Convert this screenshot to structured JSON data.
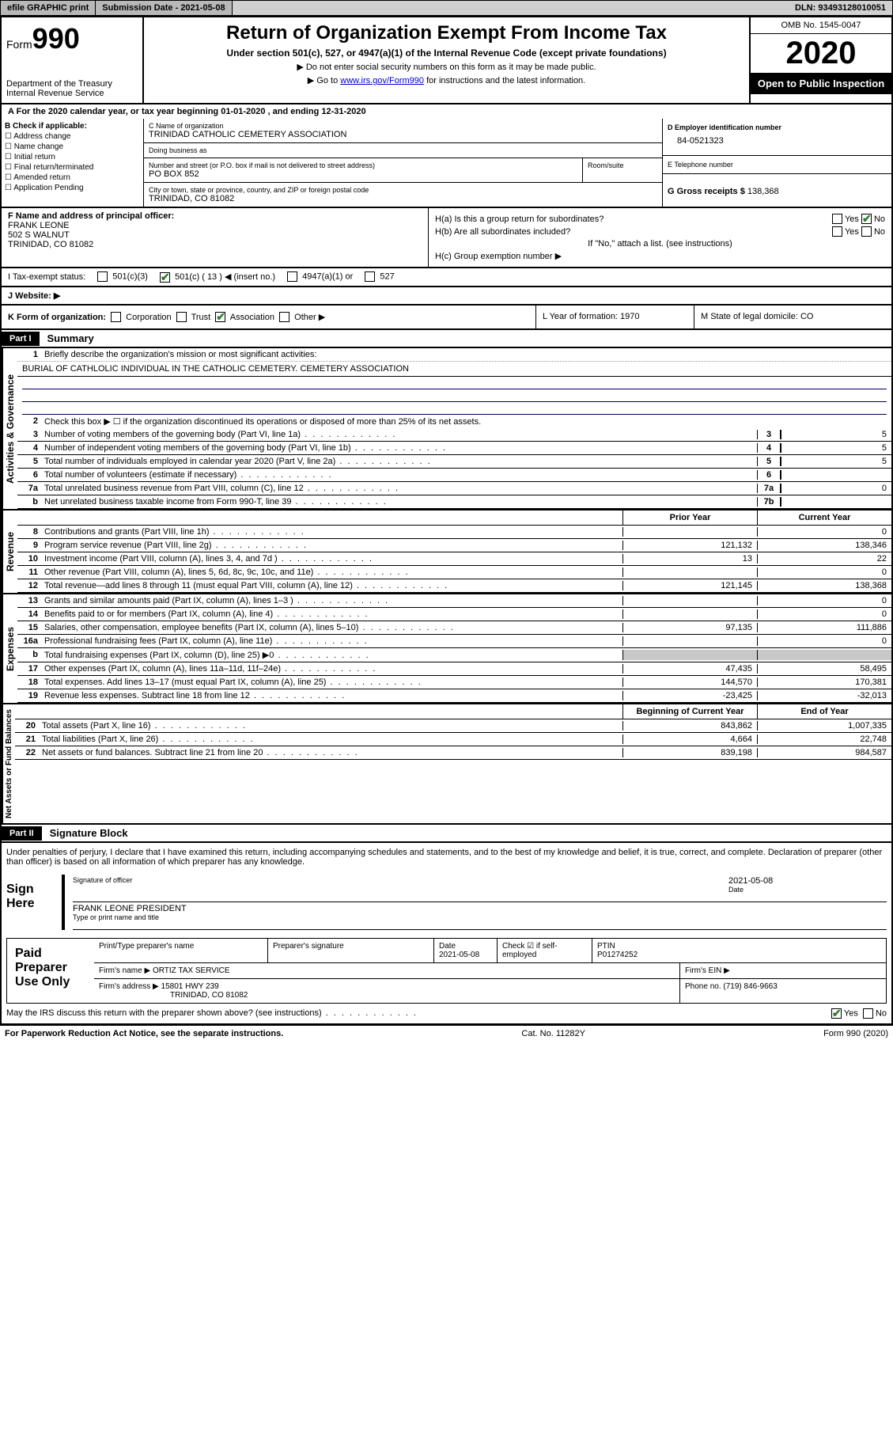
{
  "topbar": {
    "efile": "efile GRAPHIC print",
    "submission": "Submission Date - 2021-05-08",
    "dln": "DLN: 93493128010051"
  },
  "header": {
    "form_label": "Form",
    "form_num": "990",
    "dept": "Department of the Treasury\nInternal Revenue Service",
    "title": "Return of Organization Exempt From Income Tax",
    "subtitle": "Under section 501(c), 527, or 4947(a)(1) of the Internal Revenue Code (except private foundations)",
    "note1": "▶ Do not enter social security numbers on this form as it may be made public.",
    "note2_pre": "▶ Go to ",
    "note2_link": "www.irs.gov/Form990",
    "note2_post": " for instructions and the latest information.",
    "omb": "OMB No. 1545-0047",
    "year": "2020",
    "open": "Open to Public Inspection"
  },
  "period": "For the 2020 calendar year, or tax year beginning 01-01-2020    , and ending 12-31-2020",
  "box_b": {
    "label": "B Check if applicable:",
    "opts": [
      "Address change",
      "Name change",
      "Initial return",
      "Final return/terminated",
      "Amended return",
      "Application Pending"
    ]
  },
  "box_c": {
    "name_label": "C Name of organization",
    "name": "TRINIDAD CATHOLIC CEMETERY ASSOCIATION",
    "dba_label": "Doing business as",
    "dba": "",
    "street_label": "Number and street (or P.O. box if mail is not delivered to street address)",
    "room_label": "Room/suite",
    "street": "PO BOX 852",
    "city_label": "City or town, state or province, country, and ZIP or foreign postal code",
    "city": "TRINIDAD, CO  81082"
  },
  "box_d": {
    "label": "D Employer identification number",
    "val": "84-0521323"
  },
  "box_e": {
    "label": "E Telephone number",
    "val": ""
  },
  "box_g": {
    "label": "G Gross receipts $",
    "val": "138,368"
  },
  "box_f": {
    "label": "F  Name and address of principal officer:",
    "name": "FRANK LEONE",
    "addr1": "502 S WALNUT",
    "addr2": "TRINIDAD, CO  81082"
  },
  "box_h": {
    "ha": "H(a)  Is this a group return for subordinates?",
    "hb": "H(b)  Are all subordinates included?",
    "hnote": "If \"No,\" attach a list. (see instructions)",
    "hc": "H(c)  Group exemption number ▶"
  },
  "row_i": {
    "label": "I     Tax-exempt status:",
    "o1": "501(c)(3)",
    "o2": "501(c) ( 13 ) ◀ (insert no.)",
    "o3": "4947(a)(1) or",
    "o4": "527"
  },
  "row_j": "J     Website: ▶",
  "row_k": {
    "label": "K Form of organization:",
    "opts": [
      "Corporation",
      "Trust",
      "Association",
      "Other ▶"
    ],
    "l": "L Year of formation: 1970",
    "m": "M State of legal domicile: CO"
  },
  "part1": {
    "hdr": "Part I",
    "title": "Summary",
    "vlabel": "Activities & Governance",
    "q1": "Briefly describe the organization's mission or most significant activities:",
    "mission": "BURIAL OF CATHLOLIC INDIVIDUAL IN THE CATHOLIC CEMETERY. CEMETERY ASSOCIATION",
    "q2": "Check this box ▶ ☐  if the organization discontinued its operations or disposed of more than 25% of its net assets.",
    "lines": [
      {
        "n": "3",
        "t": "Number of voting members of the governing body (Part VI, line 1a)",
        "nc": "3",
        "v": "5"
      },
      {
        "n": "4",
        "t": "Number of independent voting members of the governing body (Part VI, line 1b)",
        "nc": "4",
        "v": "5"
      },
      {
        "n": "5",
        "t": "Total number of individuals employed in calendar year 2020 (Part V, line 2a)",
        "nc": "5",
        "v": "5"
      },
      {
        "n": "6",
        "t": "Total number of volunteers (estimate if necessary)",
        "nc": "6",
        "v": ""
      },
      {
        "n": "7a",
        "t": "Total unrelated business revenue from Part VIII, column (C), line 12",
        "nc": "7a",
        "v": "0"
      },
      {
        "n": "b",
        "t": "Net unrelated business taxable income from Form 990-T, line 39",
        "nc": "7b",
        "v": ""
      }
    ]
  },
  "revenue": {
    "vlabel": "Revenue",
    "hdr": {
      "prior": "Prior Year",
      "current": "Current Year"
    },
    "lines": [
      {
        "n": "8",
        "t": "Contributions and grants (Part VIII, line 1h)",
        "p": "",
        "c": "0"
      },
      {
        "n": "9",
        "t": "Program service revenue (Part VIII, line 2g)",
        "p": "121,132",
        "c": "138,346"
      },
      {
        "n": "10",
        "t": "Investment income (Part VIII, column (A), lines 3, 4, and 7d )",
        "p": "13",
        "c": "22"
      },
      {
        "n": "11",
        "t": "Other revenue (Part VIII, column (A), lines 5, 6d, 8c, 9c, 10c, and 11e)",
        "p": "",
        "c": "0"
      },
      {
        "n": "12",
        "t": "Total revenue—add lines 8 through 11 (must equal Part VIII, column (A), line 12)",
        "p": "121,145",
        "c": "138,368"
      }
    ]
  },
  "expenses": {
    "vlabel": "Expenses",
    "lines": [
      {
        "n": "13",
        "t": "Grants and similar amounts paid (Part IX, column (A), lines 1–3 )",
        "p": "",
        "c": "0"
      },
      {
        "n": "14",
        "t": "Benefits paid to or for members (Part IX, column (A), line 4)",
        "p": "",
        "c": "0"
      },
      {
        "n": "15",
        "t": "Salaries, other compensation, employee benefits (Part IX, column (A), lines 5–10)",
        "p": "97,135",
        "c": "111,886"
      },
      {
        "n": "16a",
        "t": "Professional fundraising fees (Part IX, column (A), line 11e)",
        "p": "",
        "c": "0"
      },
      {
        "n": "b",
        "t": "Total fundraising expenses (Part IX, column (D), line 25) ▶0",
        "p": "shade",
        "c": "shade"
      },
      {
        "n": "17",
        "t": "Other expenses (Part IX, column (A), lines 11a–11d, 11f–24e)",
        "p": "47,435",
        "c": "58,495"
      },
      {
        "n": "18",
        "t": "Total expenses. Add lines 13–17 (must equal Part IX, column (A), line 25)",
        "p": "144,570",
        "c": "170,381"
      },
      {
        "n": "19",
        "t": "Revenue less expenses. Subtract line 18 from line 12",
        "p": "-23,425",
        "c": "-32,013"
      }
    ]
  },
  "netassets": {
    "vlabel": "Net Assets or Fund Balances",
    "hdr": {
      "prior": "Beginning of Current Year",
      "current": "End of Year"
    },
    "lines": [
      {
        "n": "20",
        "t": "Total assets (Part X, line 16)",
        "p": "843,862",
        "c": "1,007,335"
      },
      {
        "n": "21",
        "t": "Total liabilities (Part X, line 26)",
        "p": "4,664",
        "c": "22,748"
      },
      {
        "n": "22",
        "t": "Net assets or fund balances. Subtract line 21 from line 20",
        "p": "839,198",
        "c": "984,587"
      }
    ]
  },
  "part2": {
    "hdr": "Part II",
    "title": "Signature Block",
    "decl": "Under penalties of perjury, I declare that I have examined this return, including accompanying schedules and statements, and to the best of my knowledge and belief, it is true, correct, and complete. Declaration of preparer (other than officer) is based on all information of which preparer has any knowledge.",
    "sign_here": "Sign Here",
    "sig_officer": "Signature of officer",
    "sig_date": "2021-05-08",
    "date_lbl": "Date",
    "officer": "FRANK LEONE  PRESIDENT",
    "officer_lbl": "Type or print name and title",
    "paid": "Paid Preparer Use Only",
    "pname_lbl": "Print/Type preparer's name",
    "psig_lbl": "Preparer's signature",
    "pdate_lbl": "Date",
    "pdate": "2021-05-08",
    "pcheck": "Check ☑ if self-employed",
    "ptin_lbl": "PTIN",
    "ptin": "P01274252",
    "firm_name_lbl": "Firm's name    ▶",
    "firm_name": "ORTIZ TAX SERVICE",
    "firm_ein_lbl": "Firm's EIN ▶",
    "firm_addr_lbl": "Firm's address ▶",
    "firm_addr": "15801 HWY 239",
    "firm_addr2": "TRINIDAD, CO  81082",
    "phone_lbl": "Phone no.",
    "phone": "(719) 846-9663",
    "discuss": "May the IRS discuss this return with the preparer shown above? (see instructions)"
  },
  "footer": {
    "left": "For Paperwork Reduction Act Notice, see the separate instructions.",
    "mid": "Cat. No. 11282Y",
    "right": "Form 990 (2020)"
  }
}
